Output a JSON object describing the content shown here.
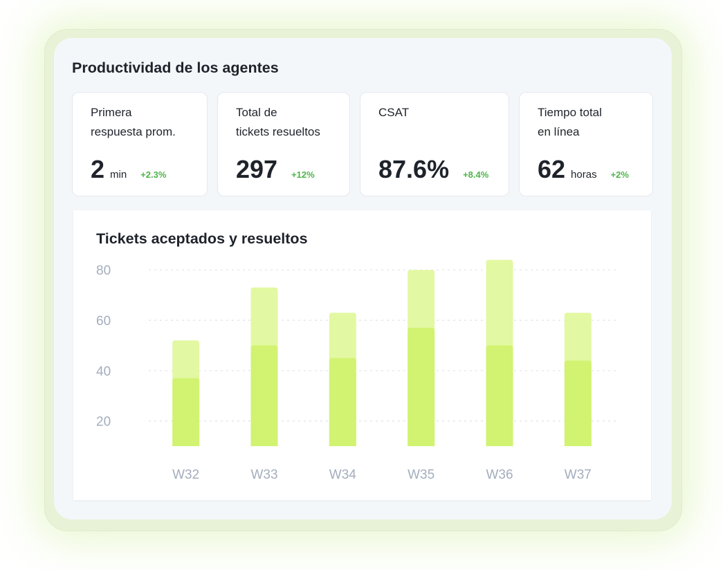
{
  "page": {
    "title": "Productividad de los agentes"
  },
  "kpis": [
    {
      "label": "Primera\nrespuesta prom.",
      "value": "2",
      "unit": "min",
      "delta": "+2.3%"
    },
    {
      "label": "Total de\ntickets resueltos",
      "value": "297",
      "unit": "",
      "delta": "+12%"
    },
    {
      "label": "CSAT",
      "value": "87.6%",
      "unit": "",
      "delta": "+8.4%"
    },
    {
      "label": "Tiempo total\nen línea",
      "value": "62",
      "unit": "horas",
      "delta": "+2%"
    }
  ],
  "colors": {
    "accepted": "#e3f8a2",
    "resolved": "#d1f371",
    "grid": "#dfe3e8",
    "tick": "#a3adbd",
    "delta_positive": "#4fb34a"
  },
  "chart_data": {
    "type": "bar",
    "title": "Tickets aceptados y resueltos",
    "categories": [
      "W32",
      "W33",
      "W34",
      "W35",
      "W36",
      "W37"
    ],
    "series": [
      {
        "values": [
          52,
          73,
          63,
          80,
          84,
          63
        ]
      },
      {
        "values": [
          37,
          50,
          45,
          57,
          50,
          44
        ]
      }
    ],
    "bars": "overlapping",
    "yticks": [
      20,
      40,
      60,
      80
    ],
    "ylim": [
      10,
      85
    ],
    "grid": true,
    "legend": false
  }
}
